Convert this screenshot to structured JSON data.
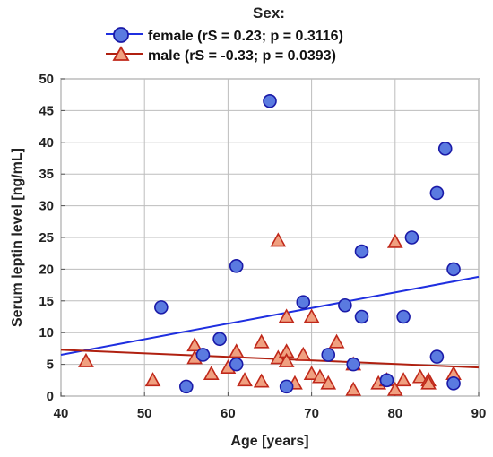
{
  "chart_data": {
    "type": "scatter",
    "title": "",
    "xlabel": "Age [years]",
    "ylabel": "Serum leptin level [ng/mL]",
    "xlim": [
      40,
      90
    ],
    "ylim": [
      0,
      50
    ],
    "xticks": [
      "40",
      "50",
      "60",
      "70",
      "80",
      "90"
    ],
    "yticks": [
      "0",
      "5",
      "10",
      "15",
      "20",
      "25",
      "30",
      "35",
      "40",
      "45",
      "50"
    ],
    "grid": true,
    "legend": {
      "title": "Sex:",
      "placement": "top-center",
      "entries": [
        {
          "label": "female (rS = 0.23; p = 0.3116)"
        },
        {
          "label": "male (rS = -0.33; p = 0.0393)"
        }
      ]
    },
    "colors": {
      "female_fill": "#5a7ae0",
      "female_stroke": "#1a1aa8",
      "female_line": "#1f2fe0",
      "male_fill": "#f0a080",
      "male_stroke": "#c0281a",
      "male_line": "#b02010"
    },
    "series": [
      {
        "marker": "circle",
        "x": [
          52,
          55,
          57,
          59,
          61,
          61,
          65,
          67,
          69,
          72,
          74,
          75,
          76,
          76,
          79,
          81,
          82,
          85,
          85,
          86,
          87,
          87
        ],
        "y": [
          14,
          1.5,
          6.5,
          9,
          20.5,
          5,
          46.5,
          1.5,
          14.8,
          6.5,
          14.3,
          5,
          22.8,
          12.5,
          2.5,
          12.5,
          25,
          32,
          6.2,
          39,
          20,
          2
        ],
        "trend": {
          "x": [
            40,
            90
          ],
          "y": [
            6.5,
            18.8
          ]
        }
      },
      {
        "marker": "triangle",
        "x": [
          43,
          51,
          56,
          56,
          58,
          60,
          61,
          62,
          64,
          64,
          66,
          66,
          67,
          67,
          67,
          68,
          69,
          70,
          70,
          71,
          72,
          73,
          75,
          75,
          78,
          79,
          80,
          80,
          81,
          83,
          84,
          84,
          87
        ],
        "y": [
          5.5,
          2.5,
          8,
          6,
          3.5,
          4.5,
          7,
          2.5,
          8.5,
          2.3,
          24.5,
          6,
          12.5,
          7,
          5.5,
          2,
          6.5,
          12.5,
          3.5,
          3,
          2,
          8.5,
          5,
          1,
          2,
          2.5,
          24.3,
          1,
          2.5,
          3,
          2.5,
          2,
          3.5
        ],
        "trend": {
          "x": [
            40,
            90
          ],
          "y": [
            7.3,
            4.5
          ]
        }
      }
    ]
  }
}
